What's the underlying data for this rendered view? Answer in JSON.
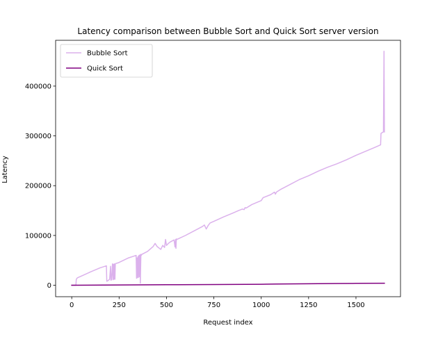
{
  "chart_data": {
    "type": "line",
    "title": "Latency comparison between Bubble Sort and Quick Sort server version",
    "xlabel": "Request index",
    "ylabel": "Latency",
    "xlim": [
      -85,
      1735
    ],
    "ylim": [
      -23000,
      492000
    ],
    "xticks": [
      0,
      250,
      500,
      750,
      1000,
      1250,
      1500
    ],
    "yticks": [
      0,
      100000,
      200000,
      300000,
      400000
    ],
    "xtick_labels": [
      "0",
      "250",
      "500",
      "750",
      "1000",
      "1250",
      "1500"
    ],
    "ytick_labels": [
      "0",
      "100000",
      "200000",
      "300000",
      "400000"
    ],
    "grid": false,
    "legend": {
      "position": "top-left"
    },
    "series": [
      {
        "name": "Bubble Sort",
        "color": "#dbb1ec",
        "x": [
          0,
          22,
          24,
          30,
          60,
          100,
          150,
          183,
          185,
          190,
          200,
          205,
          207,
          210,
          215,
          218,
          220,
          223,
          225,
          228,
          230,
          235,
          245,
          300,
          340,
          342,
          345,
          348,
          350,
          352,
          355,
          358,
          360,
          362,
          365,
          367,
          370,
          400,
          430,
          440,
          450,
          460,
          470,
          480,
          490,
          495,
          500,
          505,
          510,
          520,
          540,
          545,
          548,
          550,
          552,
          555,
          560,
          600,
          650,
          690,
          700,
          710,
          720,
          730,
          760,
          800,
          850,
          880,
          900,
          910,
          915,
          920,
          950,
          1000,
          1010,
          1050,
          1070,
          1075,
          1080,
          1100,
          1150,
          1200,
          1250,
          1300,
          1350,
          1400,
          1450,
          1500,
          1550,
          1600,
          1630,
          1632,
          1640,
          1645,
          1648,
          1650
        ],
        "values": [
          0,
          0,
          12000,
          15000,
          20000,
          27000,
          35000,
          39000,
          8000,
          9000,
          12000,
          38000,
          10000,
          11000,
          43000,
          11000,
          42000,
          12000,
          43000,
          12000,
          43000,
          44000,
          45000,
          55000,
          60000,
          14000,
          55000,
          15000,
          58000,
          16000,
          60000,
          17000,
          61000,
          4000,
          62000,
          60000,
          62000,
          68000,
          78000,
          84000,
          78000,
          75000,
          72000,
          80000,
          76000,
          92000,
          80000,
          82000,
          84000,
          87000,
          91000,
          77000,
          92000,
          74000,
          93000,
          92000,
          93000,
          100000,
          110000,
          118000,
          121000,
          113000,
          120000,
          125000,
          130000,
          137000,
          145000,
          150000,
          153000,
          152000,
          156000,
          155000,
          162000,
          170000,
          176000,
          182000,
          187000,
          183000,
          187000,
          192000,
          202000,
          212000,
          220000,
          229000,
          237000,
          244000,
          252000,
          261000,
          269000,
          277000,
          282000,
          305000,
          307000,
          308000,
          470000,
          308000
        ]
      },
      {
        "name": "Quick Sort",
        "color": "#800080",
        "x": [
          0,
          250,
          500,
          750,
          1000,
          1080,
          1250,
          1400,
          1500,
          1650
        ],
        "values": [
          0,
          500,
          1000,
          1500,
          2000,
          2500,
          3000,
          3500,
          3800,
          4000
        ]
      }
    ]
  }
}
